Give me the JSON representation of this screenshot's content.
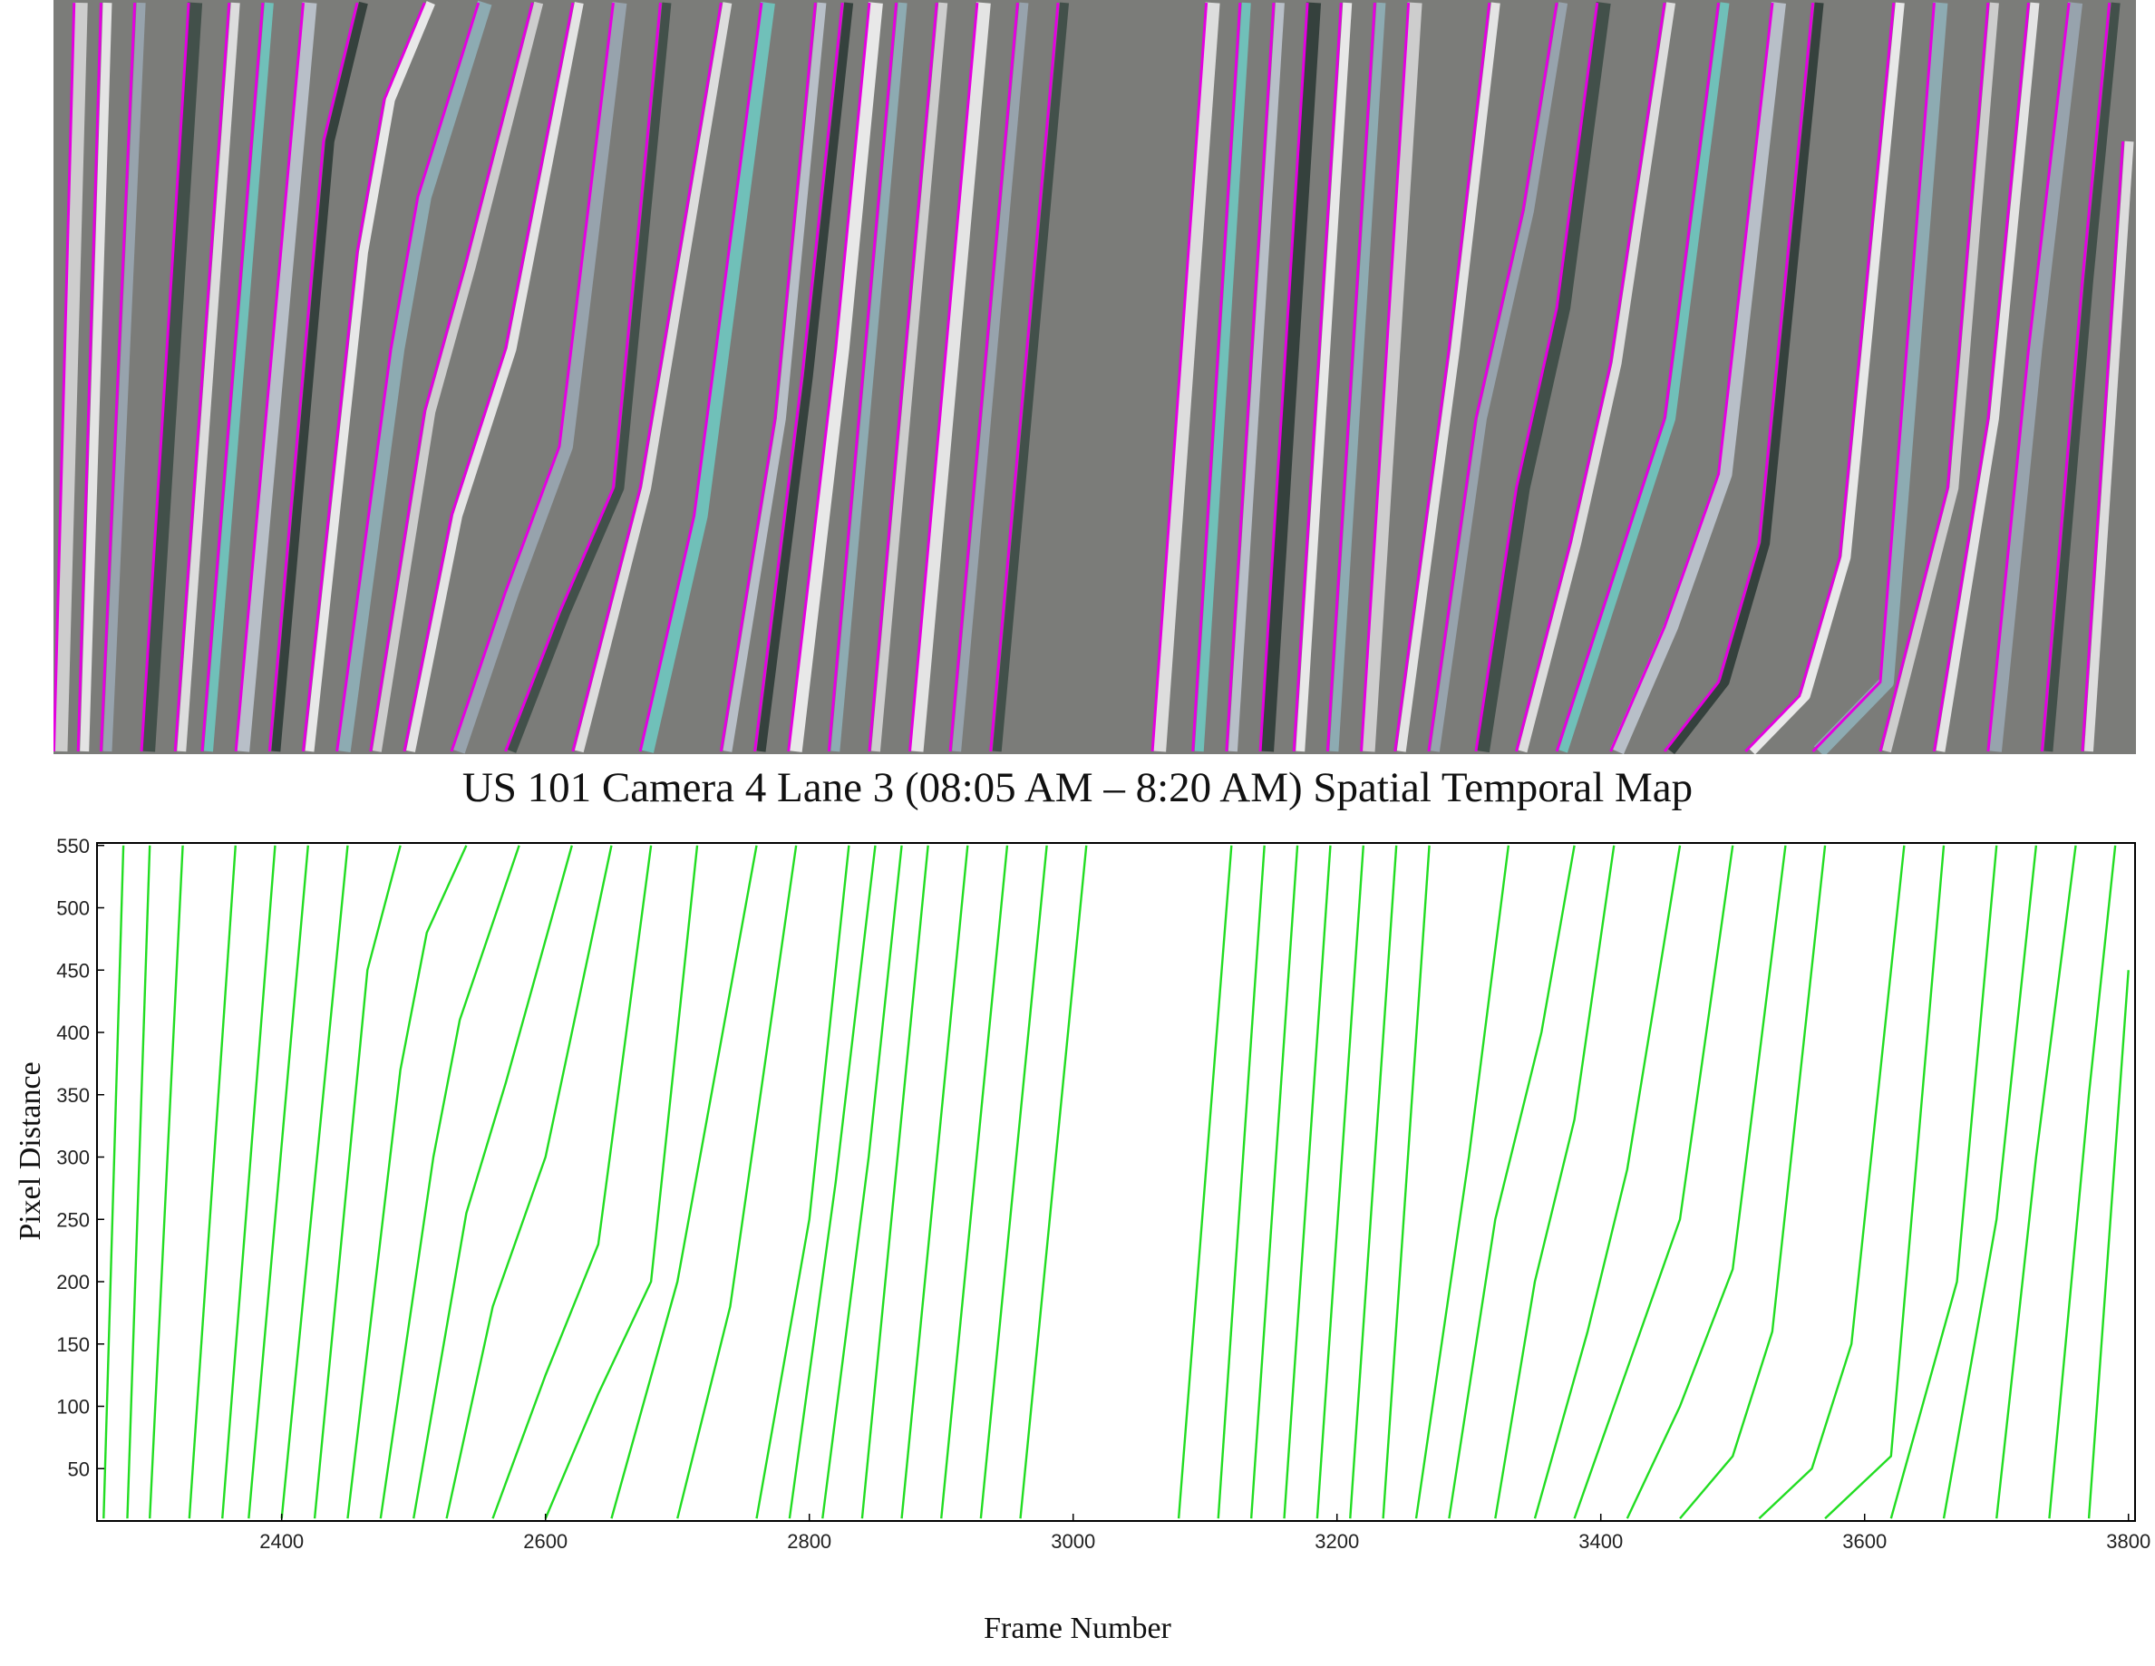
{
  "caption": "US 101 Camera 4 Lane 3 (08:05 AM – 8:20 AM) Spatial Temporal Map",
  "chart_data": [
    {
      "type": "image",
      "name": "spatial-temporal-map",
      "colors": {
        "background": "#7b7c79",
        "trajectory_outline": "#e400e0"
      }
    },
    {
      "type": "line",
      "xlabel": "Frame Number",
      "ylabel": "Pixel Distance",
      "xlim": [
        2260,
        3805
      ],
      "ylim": [
        8,
        552
      ],
      "xticks": [
        2400,
        2600,
        2800,
        3000,
        3200,
        3400,
        3600,
        3800
      ],
      "yticks": [
        50,
        100,
        150,
        200,
        250,
        300,
        350,
        400,
        450,
        500,
        550
      ],
      "grid": false,
      "line_color": "#22dd22",
      "series": [
        {
          "x": [
            2265,
            2280
          ],
          "y": [
            10,
            550
          ]
        },
        {
          "x": [
            2283,
            2300
          ],
          "y": [
            10,
            550
          ]
        },
        {
          "x": [
            2300,
            2325
          ],
          "y": [
            10,
            550
          ]
        },
        {
          "x": [
            2330,
            2365
          ],
          "y": [
            10,
            550
          ]
        },
        {
          "x": [
            2355,
            2395
          ],
          "y": [
            10,
            550
          ]
        },
        {
          "x": [
            2375,
            2420
          ],
          "y": [
            10,
            550
          ]
        },
        {
          "x": [
            2400,
            2450
          ],
          "y": [
            10,
            550
          ]
        },
        {
          "x": [
            2425,
            2465,
            2490
          ],
          "y": [
            10,
            450,
            550
          ]
        },
        {
          "x": [
            2450,
            2490,
            2510,
            2540
          ],
          "y": [
            10,
            370,
            480,
            550
          ]
        },
        {
          "x": [
            2475,
            2515,
            2535,
            2580
          ],
          "y": [
            10,
            300,
            410,
            550
          ]
        },
        {
          "x": [
            2500,
            2540,
            2570,
            2620
          ],
          "y": [
            10,
            255,
            360,
            550
          ]
        },
        {
          "x": [
            2525,
            2560,
            2600,
            2650
          ],
          "y": [
            10,
            180,
            300,
            550
          ]
        },
        {
          "x": [
            2560,
            2600,
            2640,
            2680
          ],
          "y": [
            10,
            125,
            230,
            550
          ]
        },
        {
          "x": [
            2600,
            2640,
            2680,
            2715
          ],
          "y": [
            10,
            110,
            200,
            550
          ]
        },
        {
          "x": [
            2650,
            2700,
            2760
          ],
          "y": [
            10,
            200,
            550
          ]
        },
        {
          "x": [
            2700,
            2740,
            2790
          ],
          "y": [
            10,
            180,
            550
          ]
        },
        {
          "x": [
            2760,
            2800,
            2830
          ],
          "y": [
            10,
            250,
            550
          ]
        },
        {
          "x": [
            2785,
            2820,
            2850
          ],
          "y": [
            10,
            280,
            550
          ]
        },
        {
          "x": [
            2810,
            2845,
            2870
          ],
          "y": [
            10,
            300,
            550
          ]
        },
        {
          "x": [
            2840,
            2890
          ],
          "y": [
            10,
            550
          ]
        },
        {
          "x": [
            2870,
            2920
          ],
          "y": [
            10,
            550
          ]
        },
        {
          "x": [
            2900,
            2950
          ],
          "y": [
            10,
            550
          ]
        },
        {
          "x": [
            2930,
            2980
          ],
          "y": [
            10,
            550
          ]
        },
        {
          "x": [
            2960,
            3010
          ],
          "y": [
            10,
            550
          ]
        },
        {
          "x": [
            3080,
            3120
          ],
          "y": [
            10,
            550
          ]
        },
        {
          "x": [
            3110,
            3145
          ],
          "y": [
            10,
            550
          ]
        },
        {
          "x": [
            3135,
            3170
          ],
          "y": [
            10,
            550
          ]
        },
        {
          "x": [
            3160,
            3195
          ],
          "y": [
            10,
            550
          ]
        },
        {
          "x": [
            3185,
            3220
          ],
          "y": [
            10,
            550
          ]
        },
        {
          "x": [
            3210,
            3245
          ],
          "y": [
            10,
            550
          ]
        },
        {
          "x": [
            3235,
            3270
          ],
          "y": [
            10,
            550
          ]
        },
        {
          "x": [
            3260,
            3300,
            3330
          ],
          "y": [
            10,
            300,
            550
          ]
        },
        {
          "x": [
            3285,
            3320,
            3355,
            3380
          ],
          "y": [
            10,
            250,
            400,
            550
          ]
        },
        {
          "x": [
            3320,
            3350,
            3380,
            3410
          ],
          "y": [
            10,
            200,
            330,
            550
          ]
        },
        {
          "x": [
            3350,
            3390,
            3420,
            3460
          ],
          "y": [
            10,
            160,
            290,
            550
          ]
        },
        {
          "x": [
            3380,
            3420,
            3460,
            3500
          ],
          "y": [
            10,
            130,
            250,
            550
          ]
        },
        {
          "x": [
            3420,
            3460,
            3500,
            3540
          ],
          "y": [
            10,
            100,
            210,
            550
          ]
        },
        {
          "x": [
            3460,
            3500,
            3530,
            3570
          ],
          "y": [
            10,
            60,
            160,
            550
          ]
        },
        {
          "x": [
            3520,
            3560,
            3590,
            3630
          ],
          "y": [
            10,
            50,
            150,
            550
          ]
        },
        {
          "x": [
            3570,
            3620,
            3660
          ],
          "y": [
            10,
            60,
            550
          ]
        },
        {
          "x": [
            3620,
            3670,
            3700
          ],
          "y": [
            10,
            200,
            550
          ]
        },
        {
          "x": [
            3660,
            3700,
            3730
          ],
          "y": [
            10,
            250,
            550
          ]
        },
        {
          "x": [
            3700,
            3730,
            3760
          ],
          "y": [
            10,
            300,
            550
          ]
        },
        {
          "x": [
            3740,
            3770,
            3790
          ],
          "y": [
            10,
            350,
            550
          ]
        },
        {
          "x": [
            3770,
            3800
          ],
          "y": [
            10,
            450
          ]
        }
      ]
    }
  ]
}
